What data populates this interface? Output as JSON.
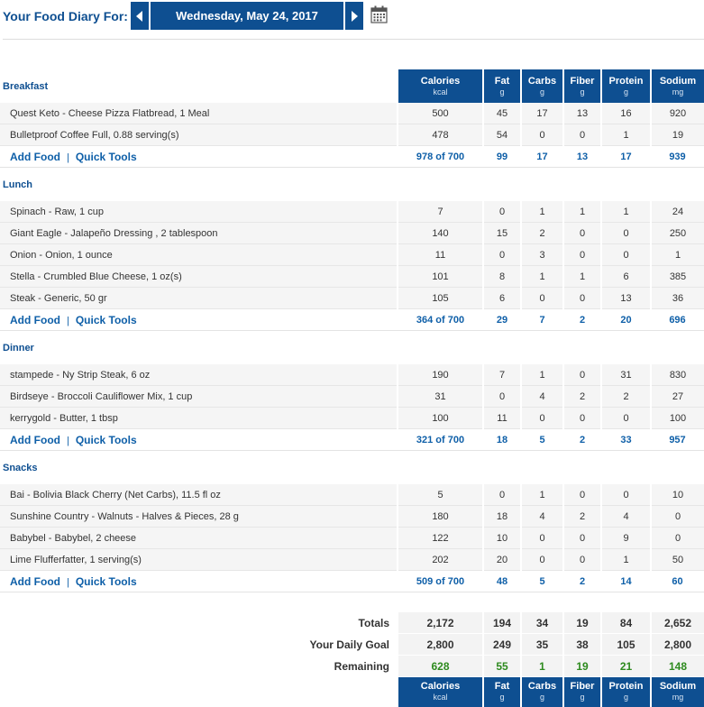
{
  "header": {
    "diary_label": "Your Food Diary For:",
    "date": "Wednesday, May 24, 2017"
  },
  "columns": [
    {
      "label": "Calories",
      "unit": "kcal"
    },
    {
      "label": "Fat",
      "unit": "g"
    },
    {
      "label": "Carbs",
      "unit": "g"
    },
    {
      "label": "Fiber",
      "unit": "g"
    },
    {
      "label": "Protein",
      "unit": "g"
    },
    {
      "label": "Sodium",
      "unit": "mg"
    }
  ],
  "links": {
    "add_food": "Add Food",
    "quick_tools": "Quick Tools",
    "separator": "|"
  },
  "meals": [
    {
      "title": "Breakfast",
      "items": [
        {
          "name": "Quest Keto - Cheese Pizza Flatbread, 1 Meal",
          "values": [
            "500",
            "45",
            "17",
            "13",
            "16",
            "920"
          ]
        },
        {
          "name": "Bulletproof Coffee Full, 0.88 serving(s)",
          "values": [
            "478",
            "54",
            "0",
            "0",
            "1",
            "19"
          ]
        }
      ],
      "totals": [
        "978 of 700",
        "99",
        "17",
        "13",
        "17",
        "939"
      ]
    },
    {
      "title": "Lunch",
      "items": [
        {
          "name": "Spinach - Raw, 1 cup",
          "values": [
            "7",
            "0",
            "1",
            "1",
            "1",
            "24"
          ]
        },
        {
          "name": "Giant Eagle - Jalapeño Dressing , 2 tablespoon",
          "values": [
            "140",
            "15",
            "2",
            "0",
            "0",
            "250"
          ]
        },
        {
          "name": "Onion - Onion, 1 ounce",
          "values": [
            "11",
            "0",
            "3",
            "0",
            "0",
            "1"
          ]
        },
        {
          "name": "Stella - Crumbled Blue Cheese, 1 oz(s)",
          "values": [
            "101",
            "8",
            "1",
            "1",
            "6",
            "385"
          ]
        },
        {
          "name": "Steak - Generic, 50 gr",
          "values": [
            "105",
            "6",
            "0",
            "0",
            "13",
            "36"
          ]
        }
      ],
      "totals": [
        "364 of 700",
        "29",
        "7",
        "2",
        "20",
        "696"
      ]
    },
    {
      "title": "Dinner",
      "items": [
        {
          "name": "stampede - Ny Strip Steak, 6 oz",
          "values": [
            "190",
            "7",
            "1",
            "0",
            "31",
            "830"
          ]
        },
        {
          "name": "Birdseye - Broccoli Cauliflower Mix, 1 cup",
          "values": [
            "31",
            "0",
            "4",
            "2",
            "2",
            "27"
          ]
        },
        {
          "name": "kerrygold - Butter, 1 tbsp",
          "values": [
            "100",
            "11",
            "0",
            "0",
            "0",
            "100"
          ]
        }
      ],
      "totals": [
        "321 of 700",
        "18",
        "5",
        "2",
        "33",
        "957"
      ]
    },
    {
      "title": "Snacks",
      "items": [
        {
          "name": "Bai - Bolivia Black Cherry (Net Carbs), 11.5 fl oz",
          "values": [
            "5",
            "0",
            "1",
            "0",
            "0",
            "10"
          ]
        },
        {
          "name": "Sunshine Country - Walnuts - Halves & Pieces, 28 g",
          "values": [
            "180",
            "18",
            "4",
            "2",
            "4",
            "0"
          ]
        },
        {
          "name": "Babybel - Babybel, 2 cheese",
          "values": [
            "122",
            "10",
            "0",
            "0",
            "9",
            "0"
          ]
        },
        {
          "name": "Lime Flufferfatter, 1 serving(s)",
          "values": [
            "202",
            "20",
            "0",
            "0",
            "1",
            "50"
          ]
        }
      ],
      "totals": [
        "509 of 700",
        "48",
        "5",
        "2",
        "14",
        "60"
      ]
    }
  ],
  "summary": {
    "totals": {
      "label": "Totals",
      "values": [
        "2,172",
        "194",
        "34",
        "19",
        "84",
        "2,652"
      ]
    },
    "goal": {
      "label": "Your Daily Goal",
      "values": [
        "2,800",
        "249",
        "35",
        "38",
        "105",
        "2,800"
      ]
    },
    "remaining": {
      "label": "Remaining",
      "values": [
        "628",
        "55",
        "1",
        "19",
        "21",
        "148"
      ]
    }
  },
  "colors": {
    "brand_blue": "#0e4f91",
    "link_blue": "#0e5fa8",
    "remaining_green": "#2d8a1e"
  },
  "icons": {
    "prev": "chevron-left-icon",
    "next": "chevron-right-icon",
    "calendar": "calendar-icon"
  }
}
